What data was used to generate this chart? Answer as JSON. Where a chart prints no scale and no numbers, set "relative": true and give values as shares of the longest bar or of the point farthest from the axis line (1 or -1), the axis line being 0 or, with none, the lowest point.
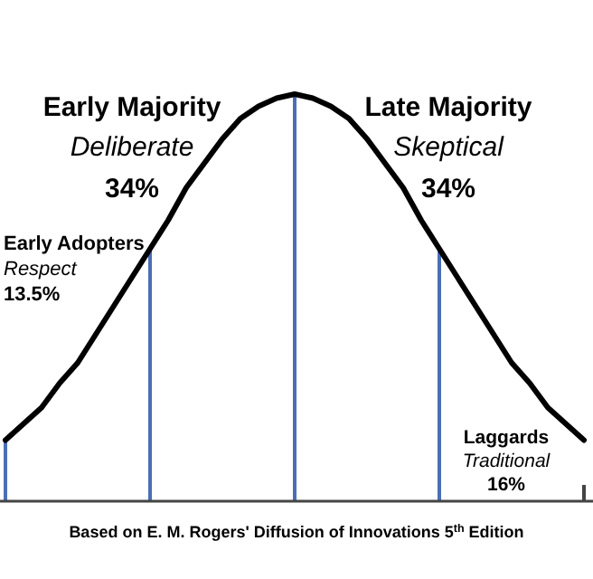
{
  "chart_data": {
    "type": "line",
    "relative": true,
    "categories": [
      null,
      null,
      null,
      null,
      null,
      null,
      null,
      null,
      null,
      null,
      null,
      null,
      null,
      null,
      null,
      null,
      null,
      null,
      null,
      null,
      null,
      null,
      null,
      null,
      null,
      null,
      null,
      null,
      null,
      null,
      null,
      null,
      null
    ],
    "series": [
      {
        "color": "#000000",
        "values": [
          0.15,
          0.19,
          0.23,
          0.29,
          0.34,
          0.41,
          0.48,
          0.55,
          0.62,
          0.69,
          0.77,
          0.83,
          0.89,
          0.94,
          0.97,
          0.99,
          1,
          0.99,
          0.97,
          0.94,
          0.89,
          0.83,
          0.77,
          0.69,
          0.62,
          0.55,
          0.48,
          0.41,
          0.34,
          0.29,
          0.23,
          0.19,
          0.15
        ]
      }
    ],
    "annotations": [
      "Early Majority",
      "Deliberate",
      "34%",
      "Late Majority",
      "Skeptical",
      "34%",
      "Early Adopters",
      "Respect",
      "13.5%",
      "Laggards",
      "Traditional",
      "16%",
      "Based on E. M. Rogers' Diffusion of Innovations 5$^{th}$ Edition"
    ]
  }
}
